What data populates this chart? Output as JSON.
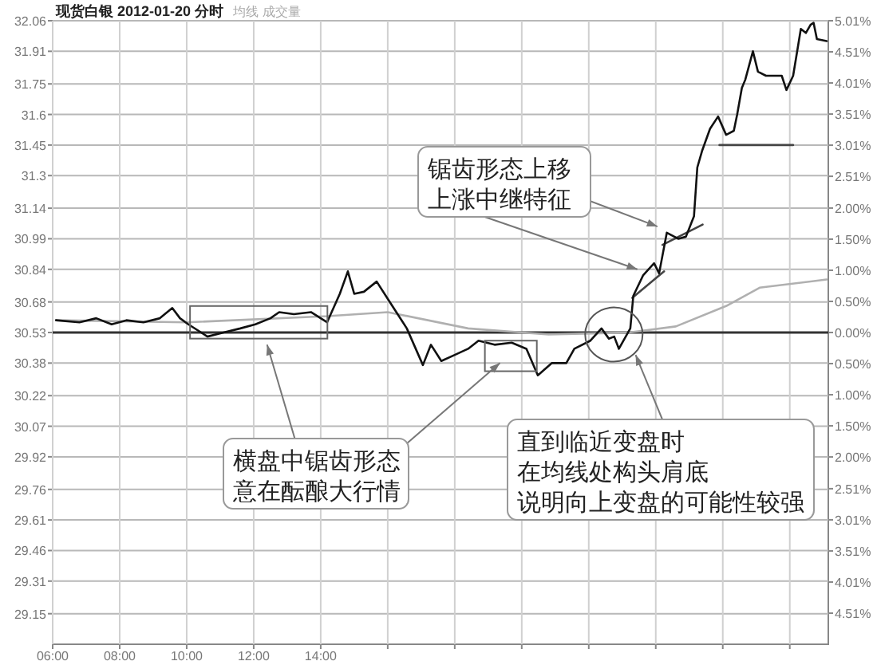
{
  "chart_data": {
    "type": "line",
    "title": "现货白银 2012-01-20 分时",
    "subtitle": "均线 成交量",
    "annotations": [
      "锯齿形态上移上涨中继特征",
      "横盘中锯齿形态意在酝酿大行情",
      {
        "text": "直到临近变盘时在均线处构头肩底说明向上变盘的可能性较强",
        "x": 23.4,
        "y": 30.42
      }
    ],
    "xlim": [
      6,
      29.15
    ],
    "xticks": [
      {
        "value": 6,
        "label": "06:00"
      },
      {
        "value": 8,
        "label": "08:00"
      },
      {
        "value": 10,
        "label": "10:00"
      },
      {
        "value": 12,
        "label": "12:00"
      },
      {
        "value": 14,
        "label": "14:00"
      },
      {
        "value": 16,
        "label": null
      },
      {
        "value": 18,
        "label": null
      },
      {
        "value": 20,
        "label": null
      },
      {
        "value": 22,
        "label": null
      },
      {
        "value": 24,
        "label": null
      },
      {
        "value": 26,
        "label": null
      },
      {
        "value": 28,
        "label": null
      }
    ],
    "ylim": [
      29.0,
      32.06
    ],
    "yticks": [
      32.06,
      31.91,
      31.75,
      31.6,
      31.45,
      31.3,
      31.14,
      30.99,
      30.84,
      30.68,
      30.53,
      30.38,
      30.22,
      30.07,
      29.92,
      29.76,
      29.61,
      29.46,
      29.31,
      29.15
    ],
    "y2lim": [
      -5.01,
      5.01
    ],
    "y2ticks": [
      {
        "value": 5.01,
        "label": "5.01%"
      },
      {
        "value": 4.51,
        "label": "4.51%"
      },
      {
        "value": 4.01,
        "label": "4.01%"
      },
      {
        "value": 3.51,
        "label": "3.51%"
      },
      {
        "value": 3.01,
        "label": "3.01%"
      },
      {
        "value": 2.51,
        "label": "2.51%"
      },
      {
        "value": 2.0,
        "label": "2.00%"
      },
      {
        "value": 1.5,
        "label": "1.50%"
      },
      {
        "value": 1.0,
        "label": "1.00%"
      },
      {
        "value": 0.5,
        "label": "0.50%"
      },
      {
        "value": 0,
        "label": "0.00%"
      },
      {
        "value": -0.5,
        "label": "0.50%"
      },
      {
        "value": -1.0,
        "label": "1.00%"
      },
      {
        "value": -1.5,
        "label": "1.50%"
      },
      {
        "value": -2.0,
        "label": "2.00%"
      },
      {
        "value": -2.51,
        "label": "2.51%"
      },
      {
        "value": -3.01,
        "label": "3.01%"
      },
      {
        "value": -3.51,
        "label": "3.51%"
      },
      {
        "value": -4.01,
        "label": "4.01%"
      },
      {
        "value": -4.51,
        "label": "4.51%"
      }
    ],
    "grid": true,
    "ref_lines": [
      {
        "axis": "y",
        "value": 30.53,
        "color": "#333333"
      }
    ],
    "series": [
      {
        "color": "#111111",
        "x": [
          6.1,
          6.8,
          7.3,
          7.76,
          8.2,
          8.71,
          9.2,
          9.57,
          9.8,
          10.05,
          10.62,
          11.1,
          11.6,
          12.05,
          12.5,
          12.76,
          13.2,
          13.71,
          14.0,
          14.19,
          14.57,
          14.81,
          15.0,
          15.29,
          15.67,
          16.1,
          16.57,
          17.05,
          17.29,
          17.6,
          18.0,
          18.4,
          18.71,
          19.19,
          19.7,
          20.14,
          20.48,
          20.9,
          21.33,
          21.57,
          22.05,
          22.38,
          22.6,
          22.76,
          22.9,
          23.24,
          23.33,
          23.62,
          23.95,
          24.1,
          24.33,
          24.67,
          24.9,
          25.14,
          25.24,
          25.38,
          25.62,
          25.86,
          26.1,
          26.33,
          26.43,
          26.57,
          26.67,
          26.9,
          27.05,
          27.29,
          27.76,
          27.9,
          28.1,
          28.24,
          28.33,
          28.48,
          28.62,
          28.71,
          28.81,
          29.1
        ],
        "values": [
          30.59,
          30.58,
          30.6,
          30.57,
          30.59,
          30.58,
          30.6,
          30.65,
          30.6,
          30.57,
          30.51,
          30.53,
          30.55,
          30.57,
          30.6,
          30.63,
          30.62,
          30.63,
          30.6,
          30.58,
          30.72,
          30.83,
          30.72,
          30.73,
          30.78,
          30.67,
          30.55,
          30.37,
          30.47,
          30.39,
          30.42,
          30.45,
          30.49,
          30.47,
          30.48,
          30.45,
          30.32,
          30.38,
          30.38,
          30.45,
          30.49,
          30.55,
          30.5,
          30.51,
          30.45,
          30.55,
          30.71,
          30.81,
          30.87,
          30.82,
          31.02,
          30.99,
          31.0,
          31.1,
          31.34,
          31.42,
          31.53,
          31.59,
          31.5,
          31.52,
          31.6,
          31.73,
          31.77,
          31.91,
          31.81,
          31.79,
          31.79,
          31.72,
          31.79,
          31.93,
          32.02,
          32.0,
          32.04,
          32.05,
          31.97,
          31.96
        ]
      },
      {
        "color": "#b0b0b0",
        "x": [
          6.1,
          10,
          14.2,
          16.0,
          18.4,
          20.8,
          23.2,
          24.6,
          26.1,
          27.1,
          29.1
        ],
        "values": [
          30.59,
          30.58,
          30.61,
          30.63,
          30.55,
          30.52,
          30.53,
          30.56,
          30.66,
          30.75,
          30.79
        ]
      },
      {
        "color": "#444444",
        "x": [
          23.3,
          24.25
        ],
        "values": [
          30.7,
          30.83
        ]
      },
      {
        "color": "#444444",
        "x": [
          24.2,
          25.4
        ],
        "values": [
          30.96,
          31.06
        ]
      },
      {
        "color": "#444444",
        "x": [
          25.9,
          28.1
        ],
        "values": [
          31.45,
          31.45
        ]
      }
    ]
  }
}
